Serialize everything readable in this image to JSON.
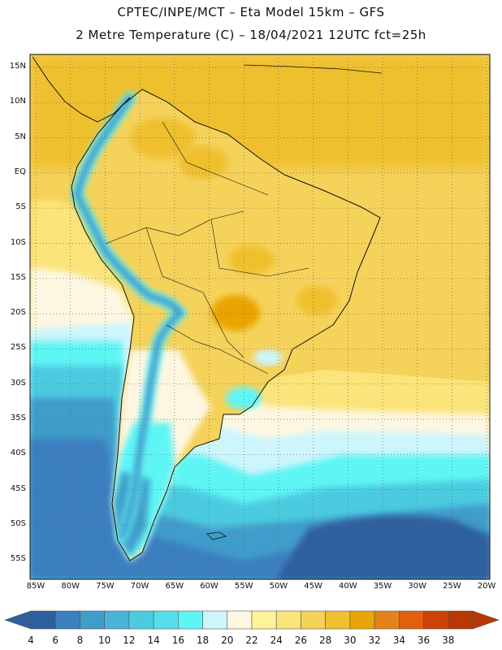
{
  "header": {
    "line1": "CPTEC/INPE/MCT –  Eta Model 15km – GFS",
    "line2": "2 Metre Temperature (C) – 18/04/2021 12UTC fct=25h"
  },
  "map": {
    "lat_labels": [
      "15N",
      "10N",
      "5N",
      "EQ",
      "5S",
      "10S",
      "15S",
      "20S",
      "25S",
      "30S",
      "35S",
      "40S",
      "45S",
      "50S",
      "55S"
    ],
    "lon_labels": [
      "85W",
      "80W",
      "75W",
      "70W",
      "65W",
      "60W",
      "55W",
      "50W",
      "45W",
      "40W",
      "35W",
      "30W",
      "25W",
      "20W"
    ]
  },
  "colorbar": {
    "labels": [
      "4",
      "6",
      "8",
      "10",
      "12",
      "14",
      "16",
      "18",
      "20",
      "22",
      "24",
      "26",
      "28",
      "30",
      "32",
      "34",
      "36",
      "38"
    ],
    "colors": [
      "#2e5f9e",
      "#3a7fbf",
      "#3f9ccb",
      "#49b4d8",
      "#4ccbe0",
      "#55dfea",
      "#5ef5f5",
      "#cdf5fc",
      "#fdf7e2",
      "#fdf39a",
      "#fbe479",
      "#f5d25a",
      "#efc02f",
      "#e9a406",
      "#e5821a",
      "#e06010",
      "#cc4208",
      "#b83806"
    ]
  }
}
